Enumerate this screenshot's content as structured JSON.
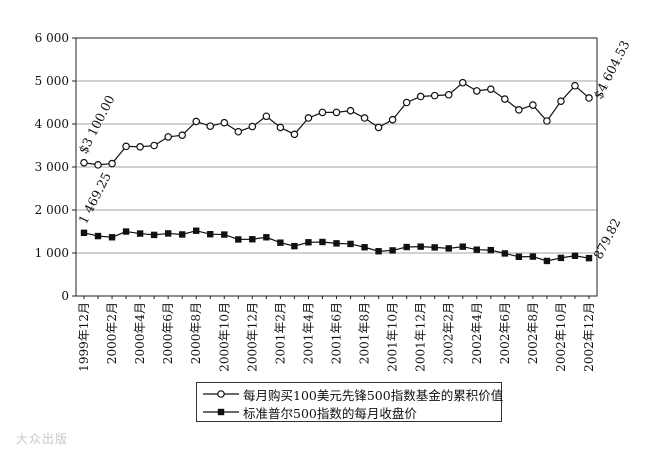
{
  "chart_data": {
    "type": "line",
    "title": "",
    "xlabel": "",
    "ylabel": "",
    "ylim": [
      0,
      6000
    ],
    "yticks": [
      0,
      1000,
      2000,
      3000,
      4000,
      5000,
      6000
    ],
    "ytick_labels": [
      "0",
      "1 000",
      "2 000",
      "3 000",
      "4 000",
      "5 000",
      "6 000"
    ],
    "grid": "horizontal",
    "legend_placement": "bottom",
    "x_tick_labels": [
      "1999年12月",
      "2000年2月",
      "2000年4月",
      "2000年6月",
      "2000年8月",
      "2000年10月",
      "2000年12月",
      "2001年2月",
      "2001年4月",
      "2001年6月",
      "2001年8月",
      "2001年10月",
      "2001年12月",
      "2002年2月",
      "2002年4月",
      "2002年6月",
      "2002年8月",
      "2002年10月",
      "2002年12月"
    ],
    "x": [
      "1999-12",
      "2000-01",
      "2000-02",
      "2000-03",
      "2000-04",
      "2000-05",
      "2000-06",
      "2000-07",
      "2000-08",
      "2000-09",
      "2000-10",
      "2000-11",
      "2000-12",
      "2001-01",
      "2001-02",
      "2001-03",
      "2001-04",
      "2001-05",
      "2001-06",
      "2001-07",
      "2001-08",
      "2001-09",
      "2001-10",
      "2001-11",
      "2001-12",
      "2002-01",
      "2002-02",
      "2002-03",
      "2002-04",
      "2002-05",
      "2002-06",
      "2002-07",
      "2002-08",
      "2002-09",
      "2002-10",
      "2002-11",
      "2002-12"
    ],
    "series": [
      {
        "name": "每月购买100美元先锋500指数基金的累积价值",
        "marker": "open-circle",
        "values": [
          3100,
          3050,
          3080,
          3480,
          3470,
          3500,
          3700,
          3740,
          4060,
          3950,
          4030,
          3820,
          3940,
          4180,
          3920,
          3760,
          4140,
          4270,
          4270,
          4310,
          4140,
          3920,
          4100,
          4500,
          4640,
          4660,
          4680,
          4960,
          4770,
          4810,
          4580,
          4330,
          4440,
          4070,
          4530,
          4890,
          4605
        ]
      },
      {
        "name": "标准普尔500指数的每月收盘价",
        "marker": "filled-square",
        "values": [
          1469,
          1394,
          1366,
          1499,
          1452,
          1421,
          1455,
          1431,
          1518,
          1437,
          1429,
          1315,
          1320,
          1366,
          1240,
          1160,
          1249,
          1256,
          1224,
          1211,
          1134,
          1041,
          1060,
          1139,
          1148,
          1130,
          1107,
          1147,
          1077,
          1067,
          990,
          912,
          916,
          815,
          886,
          936,
          880
        ]
      }
    ],
    "annotations": [
      {
        "series": 0,
        "point": "start",
        "text": "$3 100.00"
      },
      {
        "series": 0,
        "point": "end",
        "text": "$4 604.53"
      },
      {
        "series": 1,
        "point": "start",
        "text": "1 469.25"
      },
      {
        "series": 1,
        "point": "end",
        "text": "879.82"
      }
    ]
  },
  "legend": [
    {
      "label": "每月购买100美元先锋500指数基金的累积价值",
      "marker": "open-circle"
    },
    {
      "label": "标准普尔500指数的每月收盘价",
      "marker": "filled-square"
    }
  ],
  "watermark": "大众出版"
}
